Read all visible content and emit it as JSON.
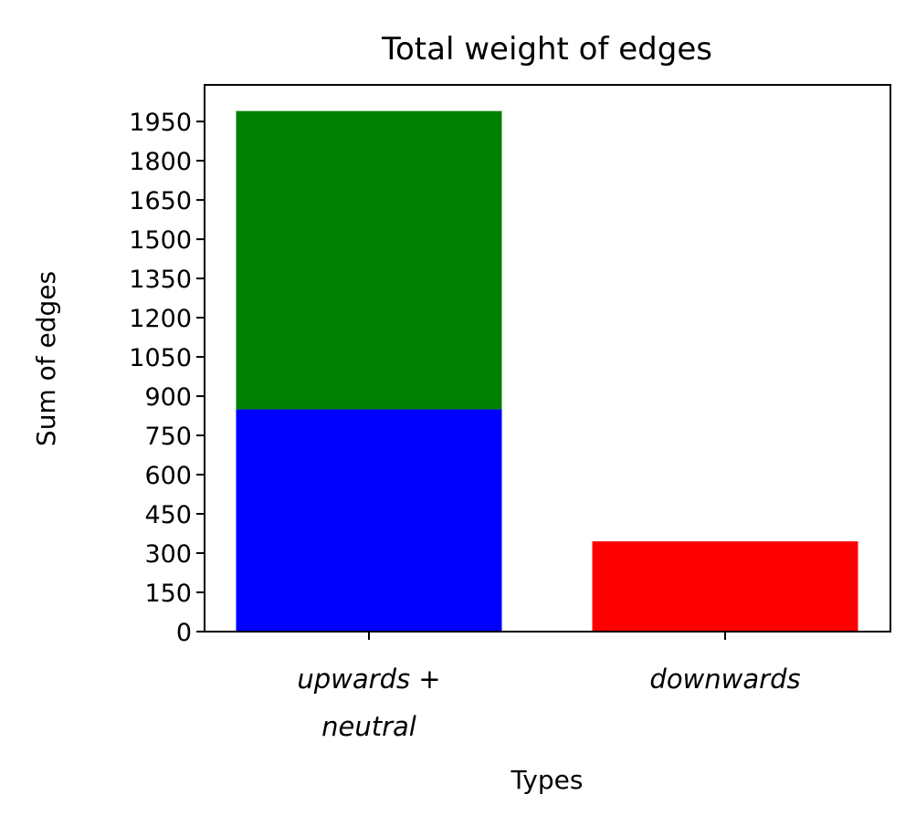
{
  "chart_data": {
    "type": "bar",
    "stacked": true,
    "title": "Total weight of edges",
    "xlabel": "Types",
    "ylabel": "Sum of edges",
    "ylim": [
      0,
      2090
    ],
    "categories": [
      {
        "lines": [
          "upwards +",
          "neutral"
        ]
      },
      {
        "lines": [
          "downwards"
        ]
      }
    ],
    "yticks": [
      "0",
      "150",
      "300",
      "450",
      "600",
      "750",
      "900",
      "1050",
      "1200",
      "1350",
      "1500",
      "1650",
      "1800",
      "1950"
    ],
    "bars": [
      {
        "category": 0,
        "segments": [
          {
            "value": 850,
            "color": "#0000ff"
          },
          {
            "value": 1140,
            "color": "#008000"
          }
        ]
      },
      {
        "category": 1,
        "segments": [
          {
            "value": 345,
            "color": "#ff0000"
          }
        ]
      }
    ],
    "grid": false,
    "legend": "none"
  }
}
